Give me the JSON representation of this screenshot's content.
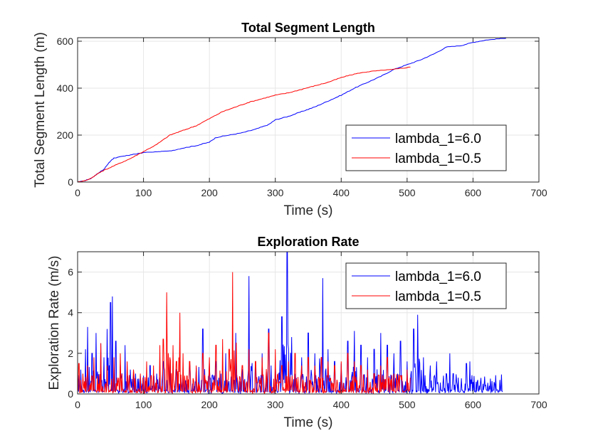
{
  "chart_data": [
    {
      "type": "line",
      "title": "Total Segment Length",
      "xlabel": "Time (s)",
      "ylabel": "Total Segment Length (m)",
      "xlim": [
        0,
        700
      ],
      "ylim": [
        0,
        615
      ],
      "xticks": [
        0,
        100,
        200,
        300,
        400,
        500,
        600,
        700
      ],
      "yticks": [
        0,
        200,
        400,
        600
      ],
      "grid": true,
      "legend_position": "bottom-right",
      "series": [
        {
          "name": "lambda_1=6.0",
          "color": "#0000ff",
          "points": [
            [
              0,
              0
            ],
            [
              10,
              5
            ],
            [
              20,
              15
            ],
            [
              30,
              35
            ],
            [
              40,
              55
            ],
            [
              50,
              90
            ],
            [
              55,
              102
            ],
            [
              70,
              110
            ],
            [
              80,
              115
            ],
            [
              90,
              120
            ],
            [
              100,
              125
            ],
            [
              120,
              128
            ],
            [
              140,
              132
            ],
            [
              160,
              145
            ],
            [
              180,
              155
            ],
            [
              200,
              170
            ],
            [
              210,
              190
            ],
            [
              230,
              200
            ],
            [
              250,
              210
            ],
            [
              270,
              225
            ],
            [
              290,
              245
            ],
            [
              300,
              265
            ],
            [
              320,
              280
            ],
            [
              340,
              300
            ],
            [
              360,
              320
            ],
            [
              380,
              345
            ],
            [
              400,
              370
            ],
            [
              420,
              400
            ],
            [
              440,
              425
            ],
            [
              460,
              450
            ],
            [
              480,
              480
            ],
            [
              500,
              500
            ],
            [
              520,
              520
            ],
            [
              540,
              545
            ],
            [
              560,
              575
            ],
            [
              580,
              580
            ],
            [
              600,
              595
            ],
            [
              620,
              605
            ],
            [
              640,
              610
            ],
            [
              650,
              612
            ]
          ]
        },
        {
          "name": "lambda_1=0.5",
          "color": "#ff0000",
          "points": [
            [
              0,
              0
            ],
            [
              10,
              5
            ],
            [
              20,
              15
            ],
            [
              30,
              35
            ],
            [
              40,
              50
            ],
            [
              60,
              75
            ],
            [
              80,
              100
            ],
            [
              100,
              130
            ],
            [
              120,
              160
            ],
            [
              140,
              200
            ],
            [
              160,
              220
            ],
            [
              180,
              240
            ],
            [
              200,
              270
            ],
            [
              220,
              300
            ],
            [
              240,
              320
            ],
            [
              260,
              340
            ],
            [
              280,
              355
            ],
            [
              300,
              370
            ],
            [
              320,
              380
            ],
            [
              340,
              395
            ],
            [
              360,
              410
            ],
            [
              380,
              425
            ],
            [
              400,
              445
            ],
            [
              420,
              460
            ],
            [
              440,
              470
            ],
            [
              460,
              475
            ],
            [
              480,
              480
            ],
            [
              505,
              490
            ]
          ]
        }
      ]
    },
    {
      "type": "line",
      "title": "Exploration Rate",
      "xlabel": "Time (s)",
      "ylabel": "Exploration Rate (m/s)",
      "xlim": [
        0,
        700
      ],
      "ylim": [
        0,
        7
      ],
      "xticks": [
        0,
        100,
        200,
        300,
        400,
        500,
        600,
        700
      ],
      "yticks": [
        0,
        2,
        4,
        6
      ],
      "grid": true,
      "legend_position": "top-right",
      "series": [
        {
          "name": "lambda_1=6.0",
          "color": "#0000ff",
          "sample_step": 1,
          "baseline": 0.05,
          "spikes": [
            [
              5,
              1.2
            ],
            [
              12,
              2.2
            ],
            [
              15,
              3.3
            ],
            [
              22,
              2.0
            ],
            [
              28,
              3.0
            ],
            [
              35,
              2.5
            ],
            [
              40,
              1.8
            ],
            [
              45,
              3.2
            ],
            [
              50,
              4.5
            ],
            [
              53,
              4.8
            ],
            [
              58,
              2.6
            ],
            [
              65,
              1.5
            ],
            [
              72,
              2.4
            ],
            [
              80,
              1.2
            ],
            [
              88,
              1.0
            ],
            [
              100,
              0.9
            ],
            [
              110,
              1.4
            ],
            [
              120,
              1.0
            ],
            [
              130,
              1.6
            ],
            [
              140,
              1.8
            ],
            [
              150,
              1.2
            ],
            [
              160,
              1.0
            ],
            [
              170,
              1.4
            ],
            [
              180,
              1.3
            ],
            [
              190,
              3.2
            ],
            [
              200,
              1.5
            ],
            [
              210,
              1.6
            ],
            [
              225,
              2.0
            ],
            [
              240,
              3.0
            ],
            [
              250,
              1.2
            ],
            [
              260,
              5.8
            ],
            [
              270,
              1.4
            ],
            [
              280,
              2.0
            ],
            [
              290,
              3.2
            ],
            [
              300,
              1.6
            ],
            [
              310,
              3.8
            ],
            [
              318,
              7.0
            ],
            [
              325,
              2.8
            ],
            [
              340,
              1.8
            ],
            [
              350,
              3.0
            ],
            [
              360,
              2.0
            ],
            [
              372,
              5.7
            ],
            [
              380,
              2.2
            ],
            [
              390,
              1.6
            ],
            [
              400,
              1.5
            ],
            [
              410,
              2.6
            ],
            [
              420,
              3.1
            ],
            [
              430,
              2.4
            ],
            [
              440,
              1.8
            ],
            [
              450,
              2.2
            ],
            [
              460,
              3.0
            ],
            [
              470,
              2.4
            ],
            [
              480,
              2.0
            ],
            [
              490,
              2.6
            ],
            [
              500,
              1.6
            ],
            [
              510,
              3.2
            ],
            [
              516,
              3.9
            ],
            [
              525,
              1.8
            ],
            [
              535,
              1.4
            ],
            [
              545,
              1.6
            ],
            [
              555,
              0.9
            ],
            [
              565,
              2.0
            ],
            [
              570,
              1.0
            ],
            [
              575,
              0.6
            ],
            [
              590,
              1.5
            ],
            [
              595,
              1.6
            ],
            [
              605,
              0.6
            ],
            [
              615,
              0.5
            ],
            [
              625,
              0.4
            ],
            [
              635,
              0.3
            ],
            [
              645,
              0.1
            ]
          ]
        },
        {
          "name": "lambda_1=0.5",
          "color": "#ff0000",
          "sample_step": 1,
          "baseline": 0.05,
          "spikes": [
            [
              2,
              1.5
            ],
            [
              8,
              1.0
            ],
            [
              15,
              1.4
            ],
            [
              25,
              1.8
            ],
            [
              35,
              2.5
            ],
            [
              45,
              1.4
            ],
            [
              55,
              1.8
            ],
            [
              65,
              2.0
            ],
            [
              75,
              1.6
            ],
            [
              85,
              1.2
            ],
            [
              95,
              1.0
            ],
            [
              105,
              1.6
            ],
            [
              115,
              1.4
            ],
            [
              125,
              2.4
            ],
            [
              130,
              2.7
            ],
            [
              135,
              5.0
            ],
            [
              140,
              1.8
            ],
            [
              145,
              2.4
            ],
            [
              150,
              1.6
            ],
            [
              155,
              4.0
            ],
            [
              160,
              2.0
            ],
            [
              170,
              1.6
            ],
            [
              180,
              1.4
            ],
            [
              190,
              2.0
            ],
            [
              200,
              1.8
            ],
            [
              210,
              2.4
            ],
            [
              220,
              2.7
            ],
            [
              230,
              2.2
            ],
            [
              235,
              6.0
            ],
            [
              240,
              1.6
            ],
            [
              250,
              1.4
            ],
            [
              260,
              2.2
            ],
            [
              270,
              1.6
            ],
            [
              280,
              1.8
            ],
            [
              290,
              3.0
            ],
            [
              300,
              2.2
            ],
            [
              310,
              1.4
            ],
            [
              320,
              1.6
            ],
            [
              330,
              2.0
            ],
            [
              340,
              1.4
            ],
            [
              350,
              1.8
            ],
            [
              360,
              1.4
            ],
            [
              370,
              1.8
            ],
            [
              380,
              1.6
            ],
            [
              390,
              1.4
            ],
            [
              400,
              1.6
            ],
            [
              410,
              2.0
            ],
            [
              420,
              1.6
            ],
            [
              430,
              1.4
            ],
            [
              440,
              1.2
            ],
            [
              450,
              1.0
            ],
            [
              460,
              1.4
            ],
            [
              470,
              1.8
            ],
            [
              480,
              1.0
            ],
            [
              490,
              0.9
            ],
            [
              500,
              1.2
            ],
            [
              505,
              0.8
            ]
          ]
        }
      ]
    }
  ]
}
